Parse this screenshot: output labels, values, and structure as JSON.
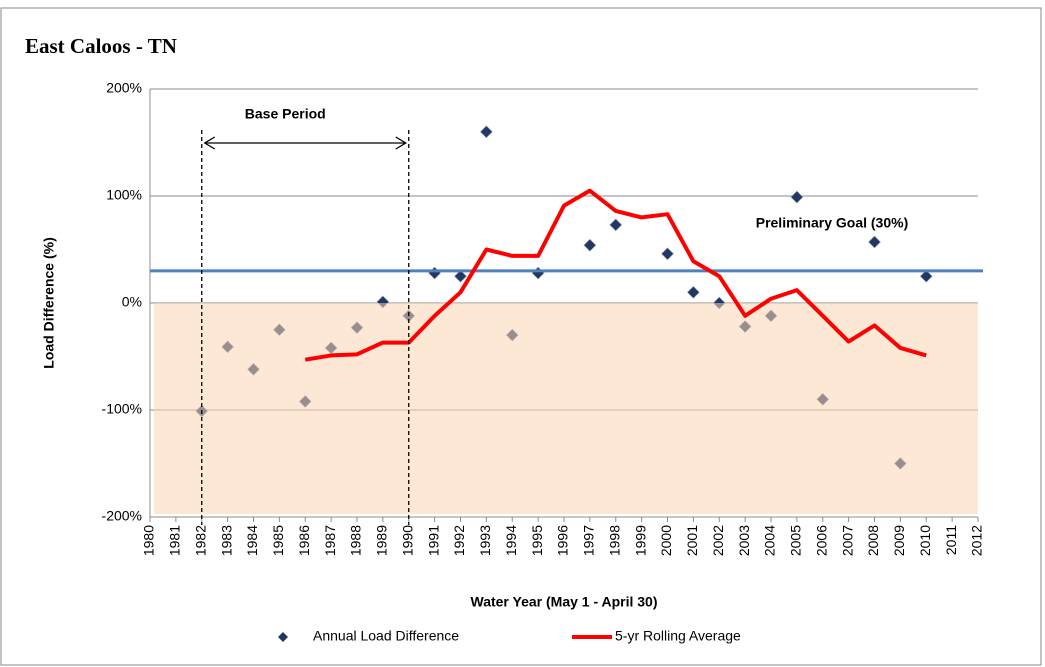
{
  "chart_data": {
    "type": "scatter-line",
    "title": "East Caloos - TN",
    "x_label": "Water Year (May 1 - April 30)",
    "y_label": "Load Difference (%)",
    "xlim": [
      1980,
      2012
    ],
    "xticks": [
      1980,
      1981,
      1982,
      1983,
      1984,
      1985,
      1986,
      1987,
      1988,
      1989,
      1990,
      1991,
      1992,
      1993,
      1994,
      1995,
      1996,
      1997,
      1998,
      1999,
      2000,
      2001,
      2002,
      2003,
      2004,
      2005,
      2006,
      2007,
      2008,
      2009,
      2010,
      2011,
      2012
    ],
    "ylim": [
      -200,
      200
    ],
    "yticks": [
      {
        "value": -200,
        "label": "-200%"
      },
      {
        "value": -100,
        "label": "-100%"
      },
      {
        "value": 0,
        "label": "0%"
      },
      {
        "value": 100,
        "label": "100%"
      },
      {
        "value": 200,
        "label": "200%"
      }
    ],
    "grid": true,
    "shade_below": 0,
    "shade_color": "#fbd5b5",
    "goal": {
      "value": 30,
      "label": "Preliminary Goal (30%)",
      "color": "#4f81bd"
    },
    "base_period": {
      "label": "Base Period",
      "start": 1982,
      "end": 1990
    },
    "legend": "bottom",
    "series": [
      {
        "name": "Annual Load Difference",
        "kind": "scatter",
        "color": "#1f3864",
        "x": [
          1982,
          1983,
          1984,
          1985,
          1986,
          1987,
          1988,
          1989,
          1990,
          1991,
          1992,
          1993,
          1994,
          1995,
          1997,
          1998,
          2000,
          2001,
          2002,
          2003,
          2004,
          2005,
          2006,
          2008,
          2009,
          2010
        ],
        "values": [
          -101,
          -41,
          -62,
          -25,
          -92,
          -42,
          -23,
          1,
          -12,
          28,
          25,
          160,
          -30,
          28,
          54,
          73,
          46,
          10,
          0,
          -22,
          -12,
          99,
          -90,
          57,
          -150,
          25
        ]
      },
      {
        "name": "5-yr Rolling Average",
        "kind": "line",
        "color": "#ff0000",
        "x": [
          1986,
          1987,
          1988,
          1989,
          1990,
          1991,
          1992,
          1993,
          1994,
          1995,
          1996,
          1997,
          1998,
          1999,
          2000,
          2001,
          2002,
          2003,
          2004,
          2005,
          2006,
          2007,
          2008,
          2009,
          2010
        ],
        "values": [
          -53,
          -49,
          -48,
          -37,
          -37,
          -12,
          10,
          50,
          44,
          44,
          91,
          105,
          86,
          80,
          83,
          39,
          25,
          -12,
          4,
          12,
          -12,
          -36,
          -21,
          -42,
          -49
        ]
      }
    ]
  }
}
